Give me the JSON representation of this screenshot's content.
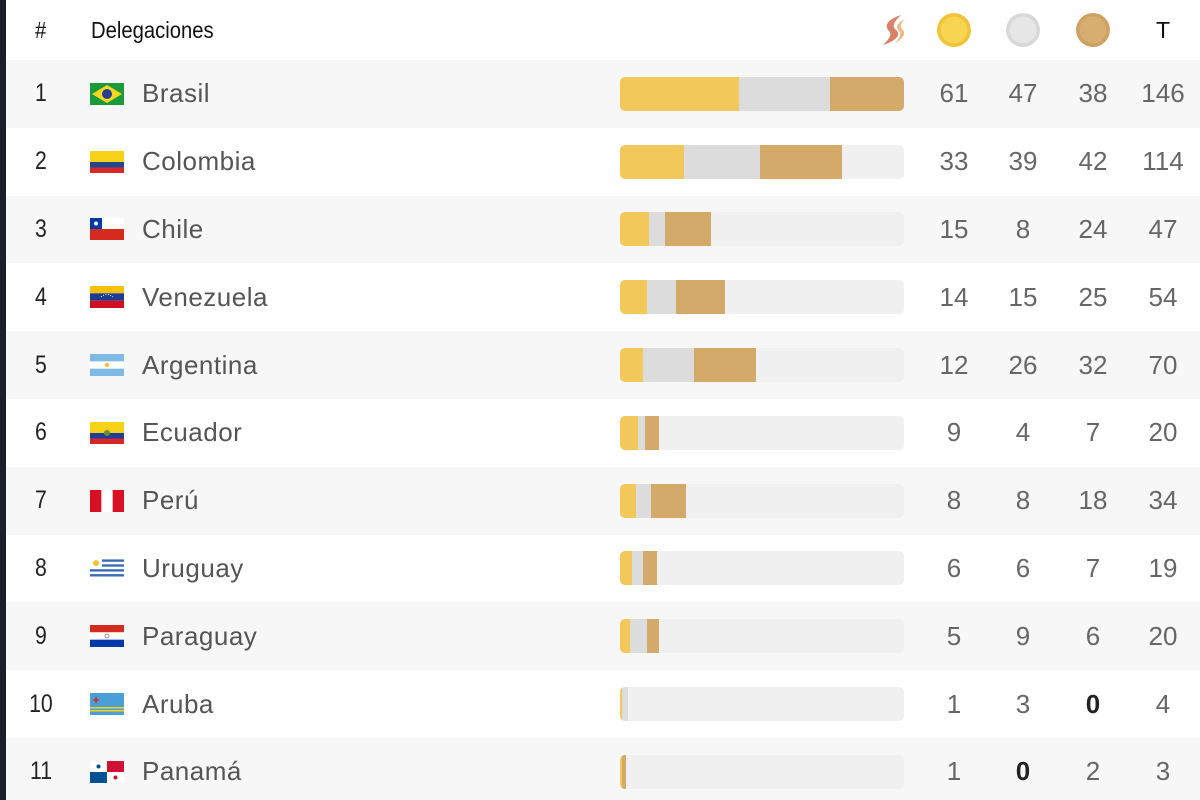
{
  "header": {
    "rank_label": "#",
    "delegations_label": "Delegaciones",
    "total_label": "T",
    "logo_icon": "games-logo-icon",
    "gold_icon": "gold-medal-icon",
    "silver_icon": "silver-medal-icon",
    "bronze_icon": "bronze-medal-icon"
  },
  "colors": {
    "gold": "#f2c85b",
    "silver": "#dcdcdc",
    "bronze": "#d4aa6a",
    "track": "#f0f0f0"
  },
  "max_total": 146,
  "rows": [
    {
      "rank": "1",
      "country": "Brasil",
      "flag": "brazil-flag-icon",
      "gold": "61",
      "silver": "47",
      "bronze": "38",
      "total": "146"
    },
    {
      "rank": "2",
      "country": "Colombia",
      "flag": "colombia-flag-icon",
      "gold": "33",
      "silver": "39",
      "bronze": "42",
      "total": "114"
    },
    {
      "rank": "3",
      "country": "Chile",
      "flag": "chile-flag-icon",
      "gold": "15",
      "silver": "8",
      "bronze": "24",
      "total": "47"
    },
    {
      "rank": "4",
      "country": "Venezuela",
      "flag": "venezuela-flag-icon",
      "gold": "14",
      "silver": "15",
      "bronze": "25",
      "total": "54"
    },
    {
      "rank": "5",
      "country": "Argentina",
      "flag": "argentina-flag-icon",
      "gold": "12",
      "silver": "26",
      "bronze": "32",
      "total": "70"
    },
    {
      "rank": "6",
      "country": "Ecuador",
      "flag": "ecuador-flag-icon",
      "gold": "9",
      "silver": "4",
      "bronze": "7",
      "total": "20"
    },
    {
      "rank": "7",
      "country": "Perú",
      "flag": "peru-flag-icon",
      "gold": "8",
      "silver": "8",
      "bronze": "18",
      "total": "34"
    },
    {
      "rank": "8",
      "country": "Uruguay",
      "flag": "uruguay-flag-icon",
      "gold": "6",
      "silver": "6",
      "bronze": "7",
      "total": "19"
    },
    {
      "rank": "9",
      "country": "Paraguay",
      "flag": "paraguay-flag-icon",
      "gold": "5",
      "silver": "9",
      "bronze": "6",
      "total": "20"
    },
    {
      "rank": "10",
      "country": "Aruba",
      "flag": "aruba-flag-icon",
      "gold": "1",
      "silver": "3",
      "bronze": "0",
      "total": "4"
    },
    {
      "rank": "11",
      "country": "Panamá",
      "flag": "panama-flag-icon",
      "gold": "1",
      "silver": "0",
      "bronze": "2",
      "total": "3"
    }
  ]
}
